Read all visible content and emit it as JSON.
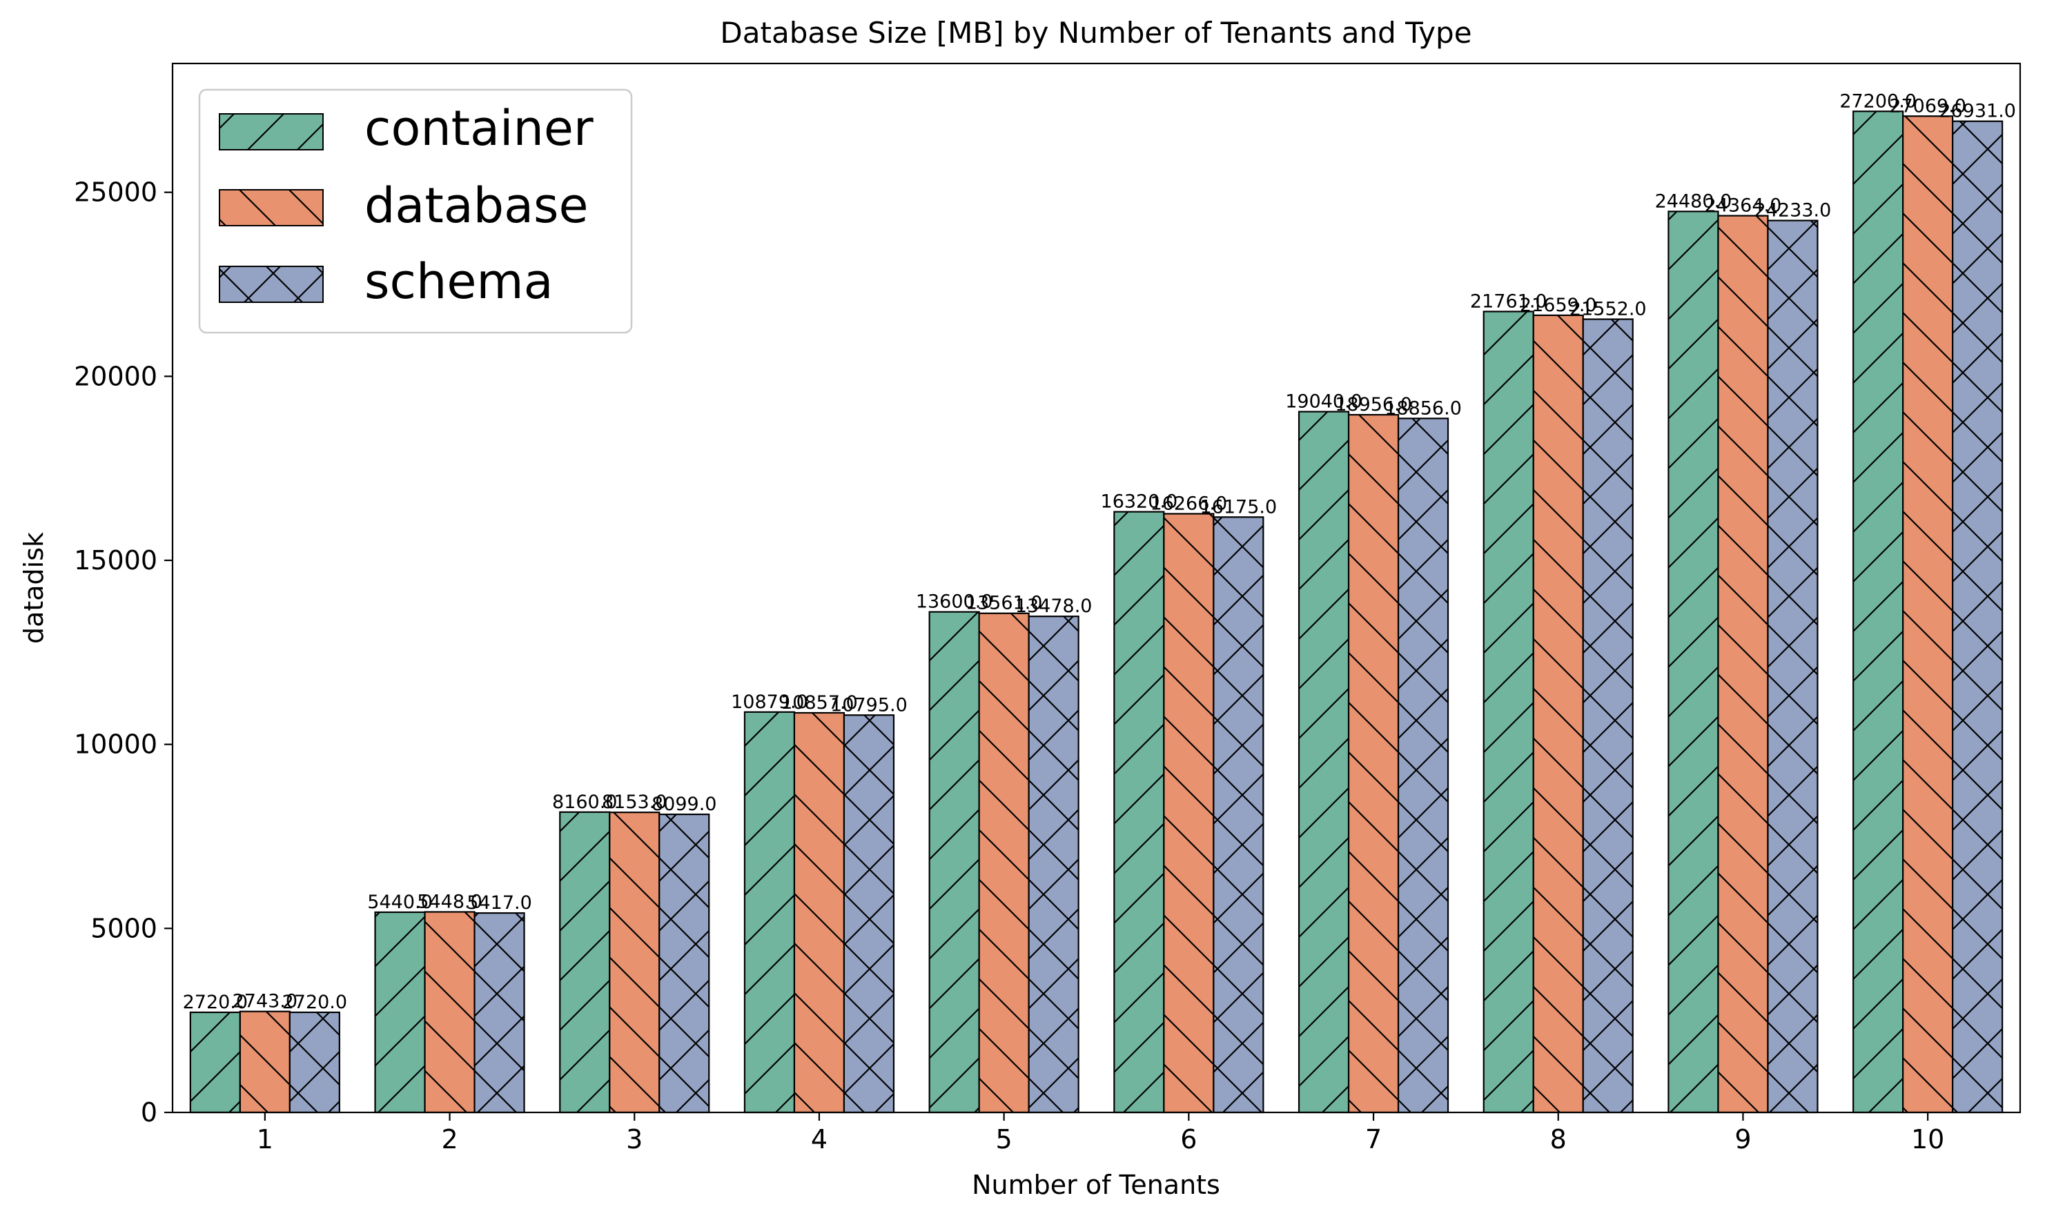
{
  "chart_data": {
    "type": "bar",
    "title": "Database Size [MB] by Number of Tenants and Type",
    "xlabel": "Number of Tenants",
    "ylabel": "datadisk",
    "categories": [
      "1",
      "2",
      "3",
      "4",
      "5",
      "6",
      "7",
      "8",
      "9",
      "10"
    ],
    "ylim": [
      0,
      28500
    ],
    "yticks": [
      0,
      5000,
      10000,
      15000,
      20000,
      25000
    ],
    "grid": false,
    "legend_position": "top-left",
    "series": [
      {
        "name": "container",
        "color": "#72b59f",
        "hatch": "diagonal-forward",
        "values": [
          2720.0,
          5440.0,
          8160.0,
          10879.0,
          13600.0,
          16320.0,
          19040.0,
          21761.0,
          24480.0,
          27200.0
        ]
      },
      {
        "name": "database",
        "color": "#e8926f",
        "hatch": "diagonal-back",
        "values": [
          2743.0,
          5448.0,
          8153.0,
          10857.0,
          13561.0,
          16266.0,
          18956.0,
          21659.0,
          24364.0,
          27069.0
        ]
      },
      {
        "name": "schema",
        "color": "#94a3c4",
        "hatch": "cross",
        "values": [
          2720.0,
          5417.0,
          8099.0,
          10795.0,
          13478.0,
          16175.0,
          18856.0,
          21552.0,
          24233.0,
          26931.0
        ]
      }
    ]
  }
}
